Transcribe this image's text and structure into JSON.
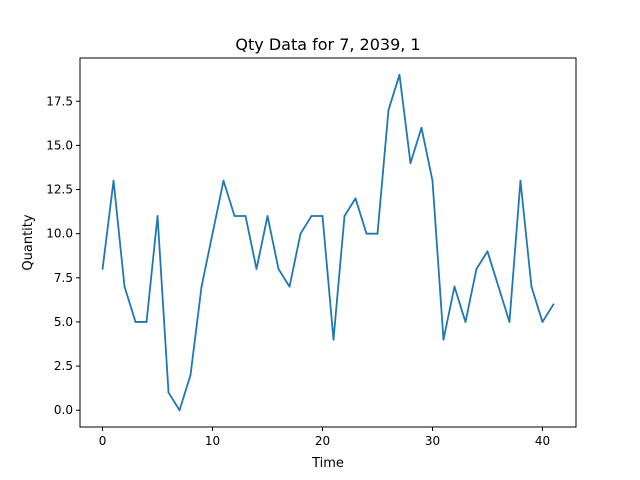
{
  "chart_data": {
    "type": "line",
    "title": "Qty Data for 7, 2039, 1",
    "xlabel": "Time",
    "ylabel": "Quantity",
    "xlim": [
      -2.05,
      43.05
    ],
    "ylim": [
      -0.95,
      19.95
    ],
    "xticks": [
      0,
      10,
      20,
      30,
      40
    ],
    "xtick_labels": [
      "0",
      "10",
      "20",
      "30",
      "40"
    ],
    "yticks": [
      0,
      2.5,
      5,
      7.5,
      10,
      12.5,
      15,
      17.5
    ],
    "ytick_labels": [
      "0.0",
      "2.5",
      "5.0",
      "7.5",
      "10.0",
      "12.5",
      "15.0",
      "17.5"
    ],
    "grid": false,
    "series": [
      {
        "color": "#1f77b4",
        "x": [
          0,
          1,
          2,
          3,
          4,
          5,
          6,
          7,
          8,
          9,
          10,
          11,
          12,
          13,
          14,
          15,
          16,
          17,
          18,
          19,
          20,
          21,
          22,
          23,
          24,
          25,
          26,
          27,
          28,
          29,
          30,
          31,
          32,
          33,
          34,
          35,
          36,
          37,
          38,
          39,
          40,
          41
        ],
        "y": [
          8,
          13,
          7,
          5,
          5,
          11,
          1,
          0,
          2,
          7,
          10,
          13,
          11,
          11,
          8,
          11,
          8,
          7,
          10,
          11,
          11,
          4,
          11,
          12,
          10,
          10,
          17,
          19,
          14,
          16,
          13,
          4,
          7,
          5,
          8,
          9,
          7,
          5,
          13,
          7,
          5,
          6
        ]
      }
    ]
  }
}
